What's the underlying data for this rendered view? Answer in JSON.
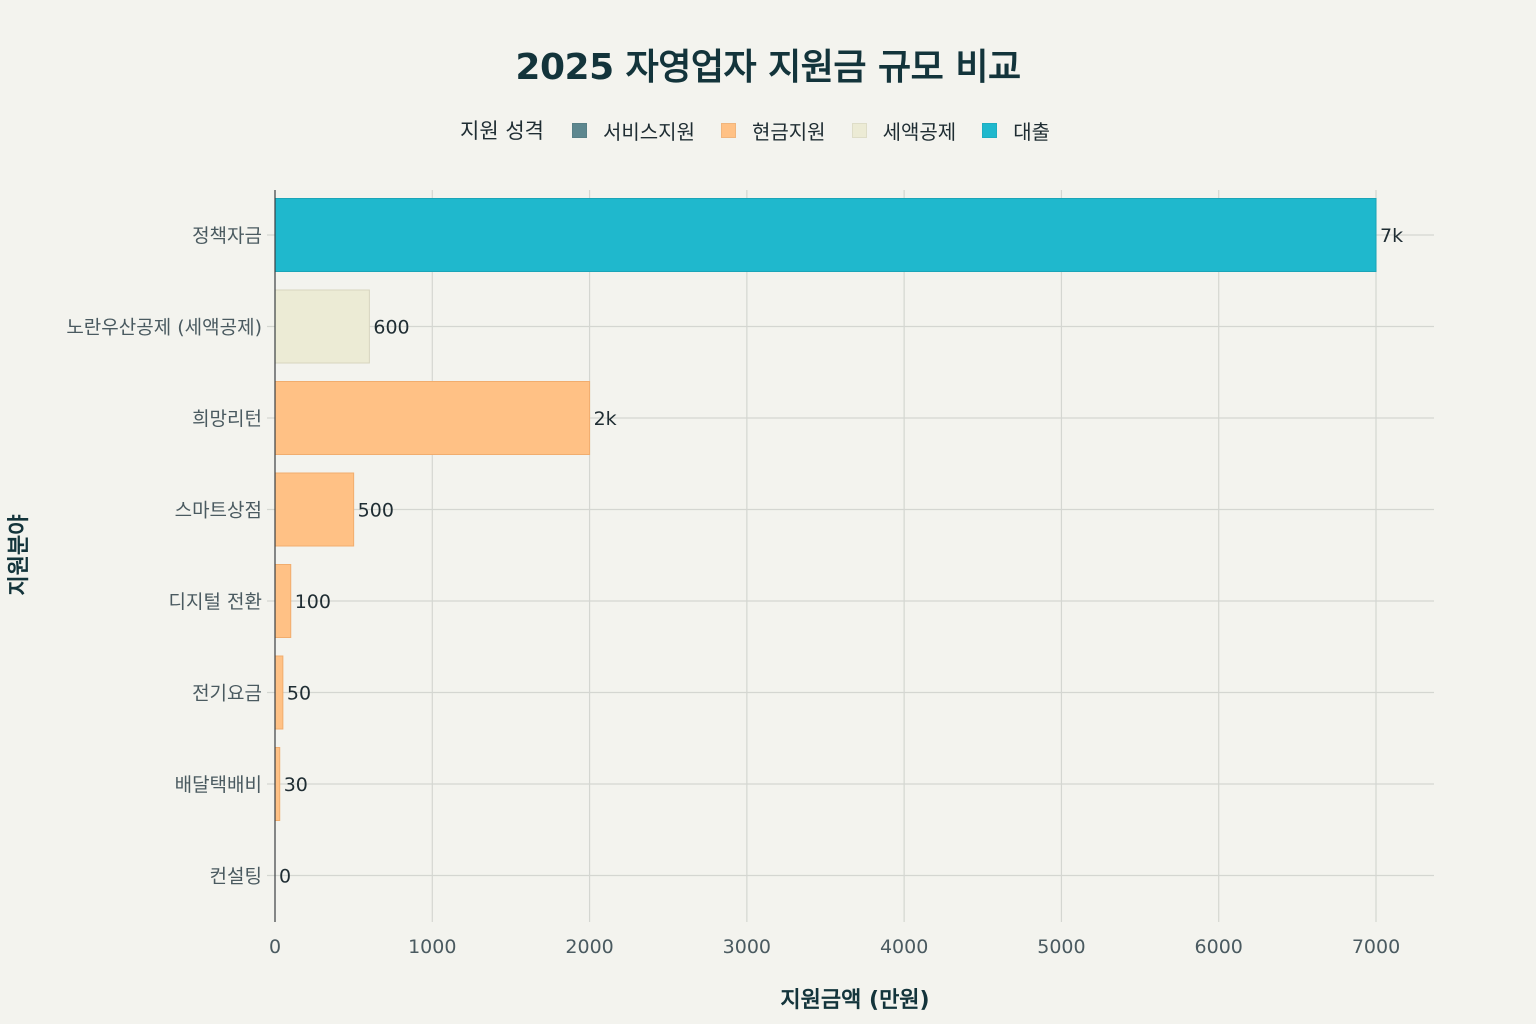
{
  "chart_data": {
    "type": "bar",
    "orientation": "horizontal",
    "title": "2025 자영업자 지원금 규모 비교",
    "xlabel": "지원금액 (만원)",
    "ylabel": "지원분야",
    "xlim": [
      0,
      7370
    ],
    "xticks": [
      "0",
      "1000",
      "2000",
      "3000",
      "4000",
      "5000",
      "6000",
      "7000"
    ],
    "grid": true,
    "legend": {
      "title": "지원 성격",
      "placement": "top",
      "entries": [
        {
          "name": "서비스지원",
          "color": "#5d878f"
        },
        {
          "name": "현금지원",
          "color": "#ffc185"
        },
        {
          "name": "세액공제",
          "color": "#eceBd5"
        },
        {
          "name": "대출",
          "color": "#1fb8cd"
        }
      ]
    },
    "categories": [
      "정책자금",
      "노란우산공제 (세액공제)",
      "희망리턴",
      "스마트상점",
      "디지털 전환",
      "전기요금",
      "배달택배비",
      "컨설팅"
    ],
    "values": [
      7000,
      600,
      2000,
      500,
      100,
      50,
      30,
      0
    ],
    "value_labels": [
      "7k",
      "600",
      "2k",
      "500",
      "100",
      "50",
      "30",
      "0"
    ],
    "groups": [
      "대출",
      "세액공제",
      "현금지원",
      "현금지원",
      "현금지원",
      "현금지원",
      "현금지원",
      "서비스지원"
    ]
  }
}
